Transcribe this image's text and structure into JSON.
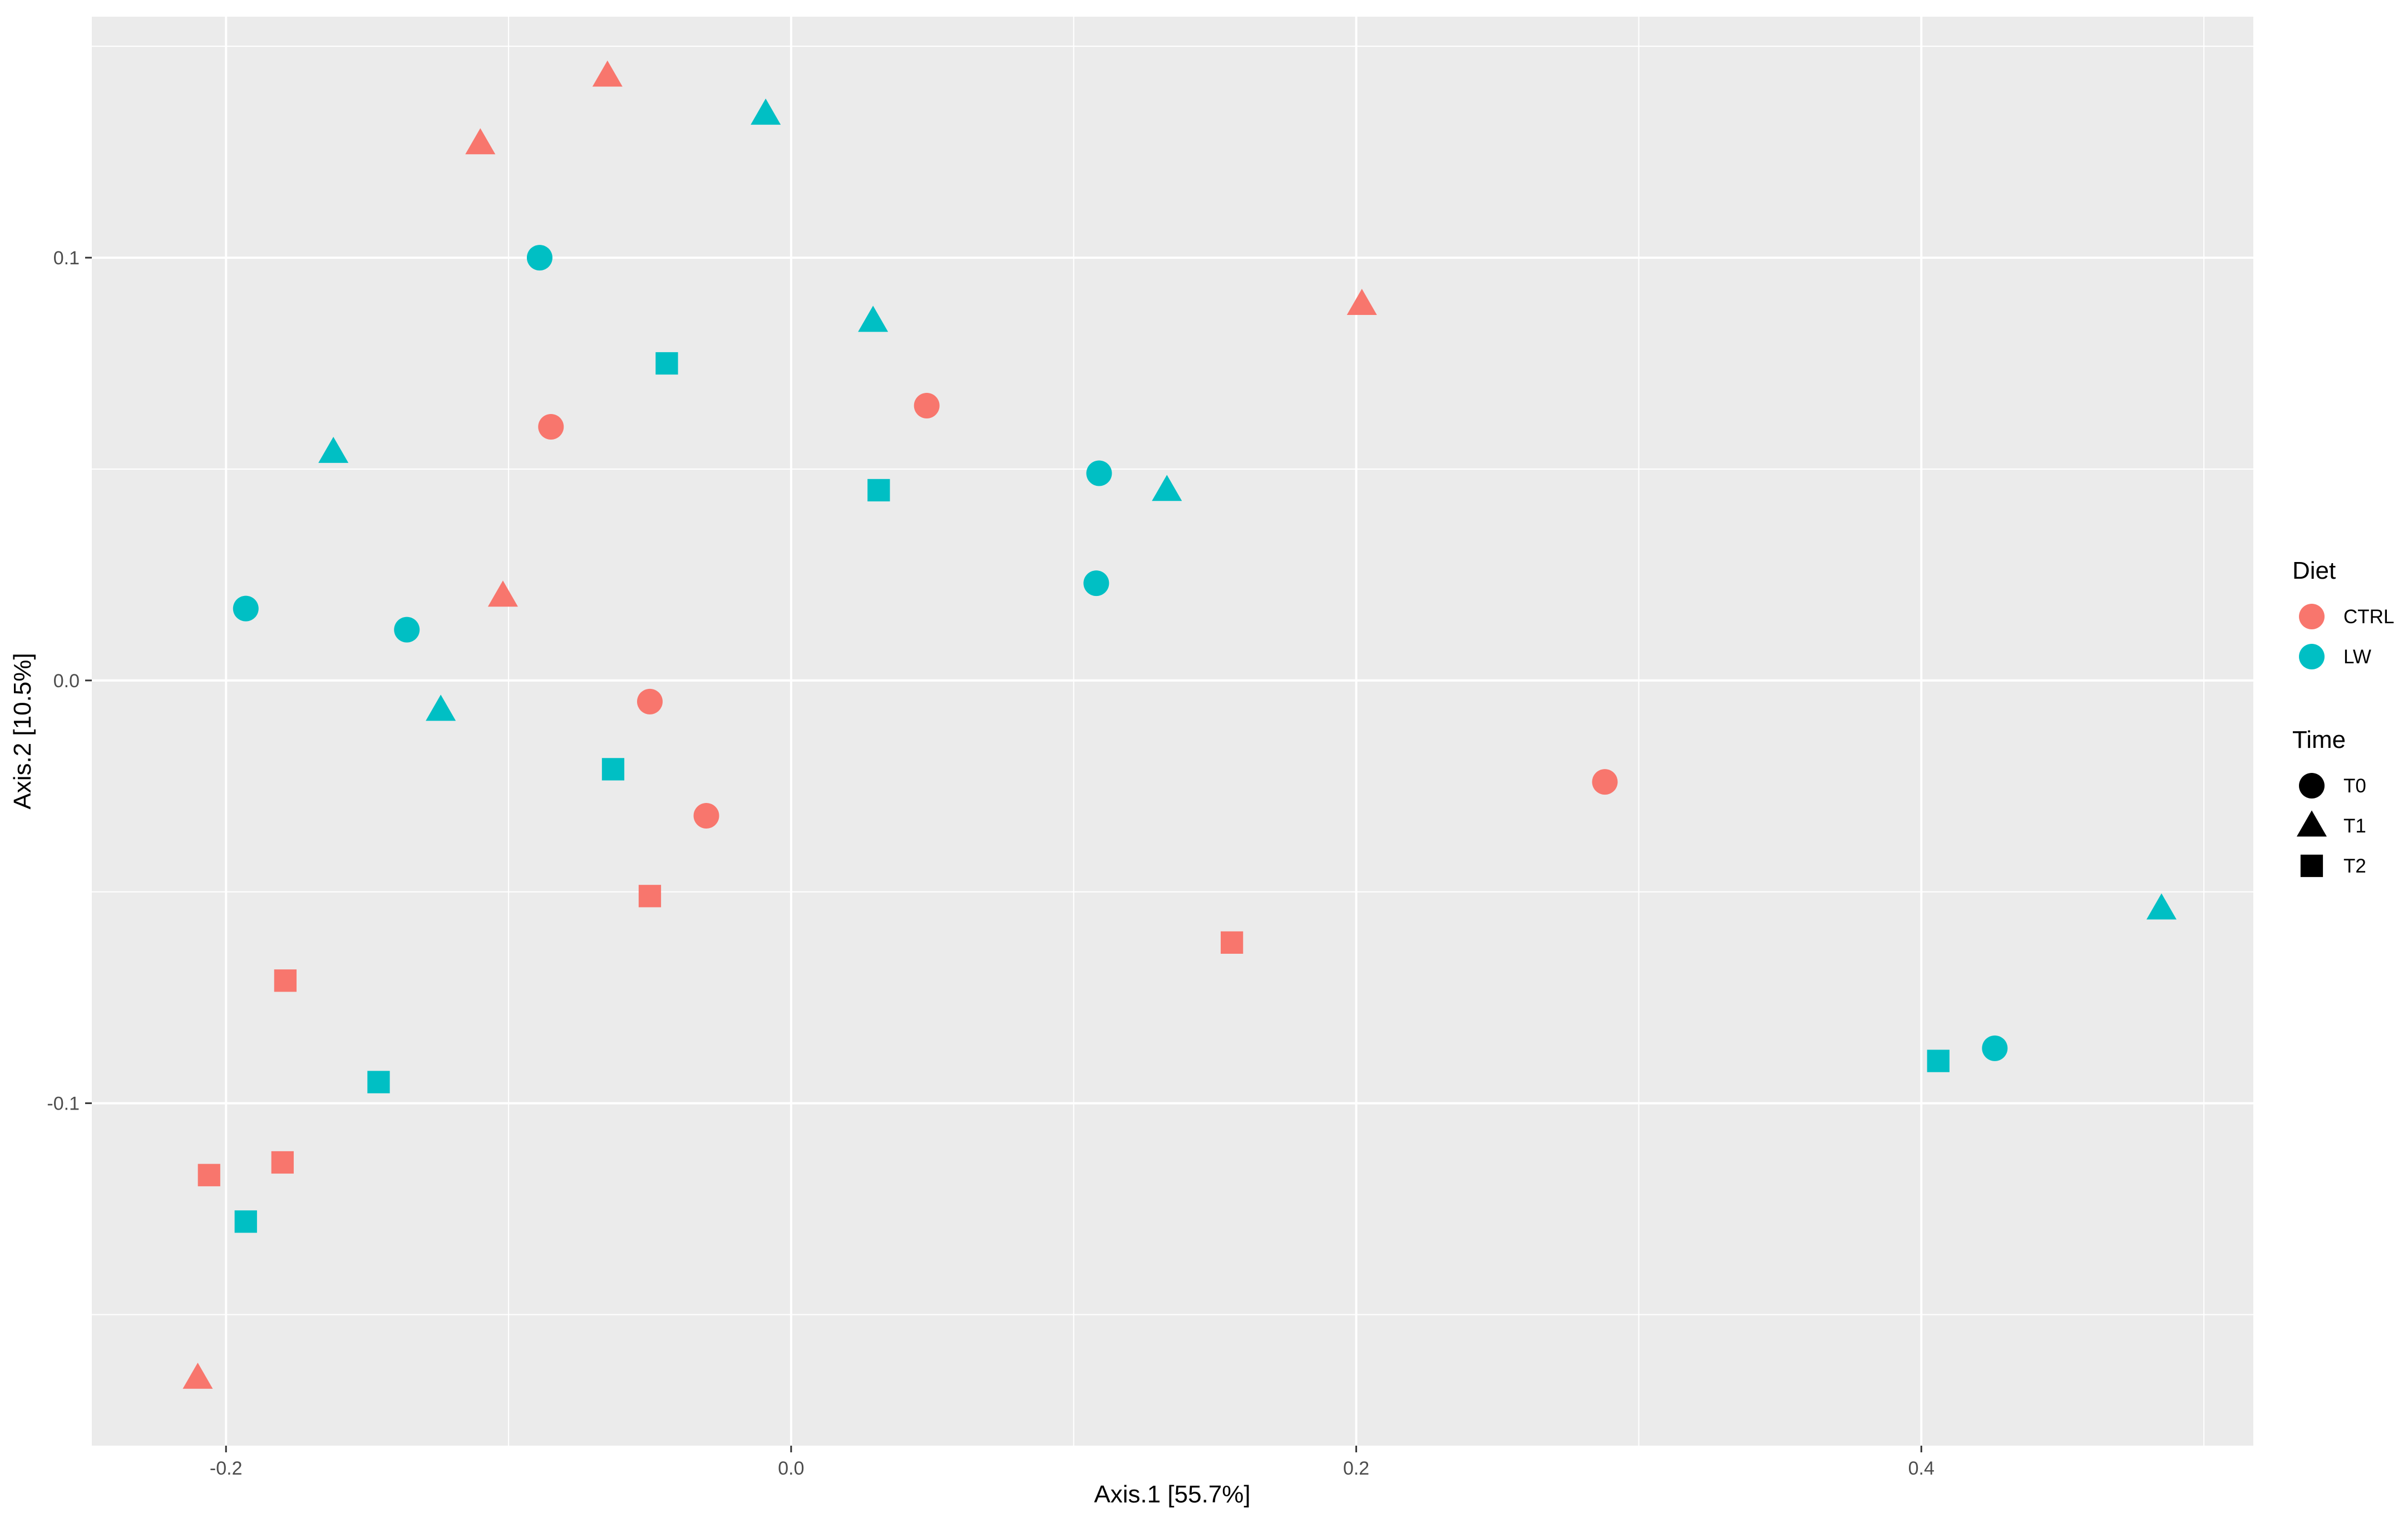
{
  "chart_data": {
    "type": "scatter",
    "title": "",
    "xlabel": "Axis.1   [55.7%]",
    "ylabel": "Axis.2   [10.5%]",
    "xlim": [
      -0.2475,
      0.5175
    ],
    "ylim": [
      -0.181,
      0.157
    ],
    "x_ticks": [
      -0.2,
      0.0,
      0.2,
      0.4
    ],
    "x_tick_labels": [
      "-0.2",
      "0.0",
      "0.2",
      "0.4"
    ],
    "y_ticks": [
      -0.1,
      0.0,
      0.1
    ],
    "y_tick_labels": [
      "-0.1",
      "0.0",
      "0.1"
    ],
    "x_minor": [
      -0.1,
      0.1,
      0.3,
      0.5
    ],
    "y_minor": [
      -0.15,
      -0.05,
      0.05,
      0.15
    ],
    "grid": true,
    "legend_position": "right",
    "colors": {
      "CTRL": "#F8766D",
      "LW": "#00BFC4"
    },
    "legends": [
      {
        "title": "Diet",
        "kind": "color",
        "entries": [
          {
            "label": "CTRL",
            "key": "CTRL"
          },
          {
            "label": "LW",
            "key": "LW"
          }
        ]
      },
      {
        "title": "Time",
        "kind": "shape",
        "entries": [
          {
            "label": "T0",
            "key": "T0"
          },
          {
            "label": "T1",
            "key": "T1"
          },
          {
            "label": "T2",
            "key": "T2"
          }
        ]
      }
    ],
    "shapes": {
      "T0": "circle",
      "T1": "triangle",
      "T2": "square"
    },
    "points": [
      {
        "x": -0.065,
        "y": 0.143,
        "diet": "CTRL",
        "time": "T1"
      },
      {
        "x": -0.11,
        "y": 0.127,
        "diet": "CTRL",
        "time": "T1"
      },
      {
        "x": -0.102,
        "y": 0.02,
        "diet": "CTRL",
        "time": "T1"
      },
      {
        "x": 0.202,
        "y": 0.089,
        "diet": "CTRL",
        "time": "T1"
      },
      {
        "x": -0.21,
        "y": -0.165,
        "diet": "CTRL",
        "time": "T1"
      },
      {
        "x": -0.085,
        "y": 0.06,
        "diet": "CTRL",
        "time": "T0"
      },
      {
        "x": 0.048,
        "y": 0.065,
        "diet": "CTRL",
        "time": "T0"
      },
      {
        "x": -0.05,
        "y": -0.005,
        "diet": "CTRL",
        "time": "T0"
      },
      {
        "x": -0.03,
        "y": -0.032,
        "diet": "CTRL",
        "time": "T0"
      },
      {
        "x": 0.288,
        "y": -0.024,
        "diet": "CTRL",
        "time": "T0"
      },
      {
        "x": -0.05,
        "y": -0.051,
        "diet": "CTRL",
        "time": "T2"
      },
      {
        "x": -0.179,
        "y": -0.071,
        "diet": "CTRL",
        "time": "T2"
      },
      {
        "x": 0.156,
        "y": -0.062,
        "diet": "CTRL",
        "time": "T2"
      },
      {
        "x": -0.18,
        "y": -0.114,
        "diet": "CTRL",
        "time": "T2"
      },
      {
        "x": -0.206,
        "y": -0.117,
        "diet": "CTRL",
        "time": "T2"
      },
      {
        "x": -0.009,
        "y": 0.134,
        "diet": "LW",
        "time": "T1"
      },
      {
        "x": 0.029,
        "y": 0.085,
        "diet": "LW",
        "time": "T1"
      },
      {
        "x": -0.162,
        "y": 0.054,
        "diet": "LW",
        "time": "T1"
      },
      {
        "x": 0.133,
        "y": 0.045,
        "diet": "LW",
        "time": "T1"
      },
      {
        "x": -0.124,
        "y": -0.007,
        "diet": "LW",
        "time": "T1"
      },
      {
        "x": 0.485,
        "y": -0.054,
        "diet": "LW",
        "time": "T1"
      },
      {
        "x": -0.089,
        "y": 0.1,
        "diet": "LW",
        "time": "T0"
      },
      {
        "x": 0.109,
        "y": 0.049,
        "diet": "LW",
        "time": "T0"
      },
      {
        "x": 0.108,
        "y": 0.023,
        "diet": "LW",
        "time": "T0"
      },
      {
        "x": -0.193,
        "y": 0.017,
        "diet": "LW",
        "time": "T0"
      },
      {
        "x": -0.136,
        "y": 0.012,
        "diet": "LW",
        "time": "T0"
      },
      {
        "x": 0.426,
        "y": -0.087,
        "diet": "LW",
        "time": "T0"
      },
      {
        "x": -0.044,
        "y": 0.075,
        "diet": "LW",
        "time": "T2"
      },
      {
        "x": 0.031,
        "y": 0.045,
        "diet": "LW",
        "time": "T2"
      },
      {
        "x": -0.063,
        "y": -0.021,
        "diet": "LW",
        "time": "T2"
      },
      {
        "x": -0.146,
        "y": -0.095,
        "diet": "LW",
        "time": "T2"
      },
      {
        "x": -0.193,
        "y": -0.128,
        "diet": "LW",
        "time": "T2"
      },
      {
        "x": 0.406,
        "y": -0.09,
        "diet": "LW",
        "time": "T2"
      }
    ]
  }
}
